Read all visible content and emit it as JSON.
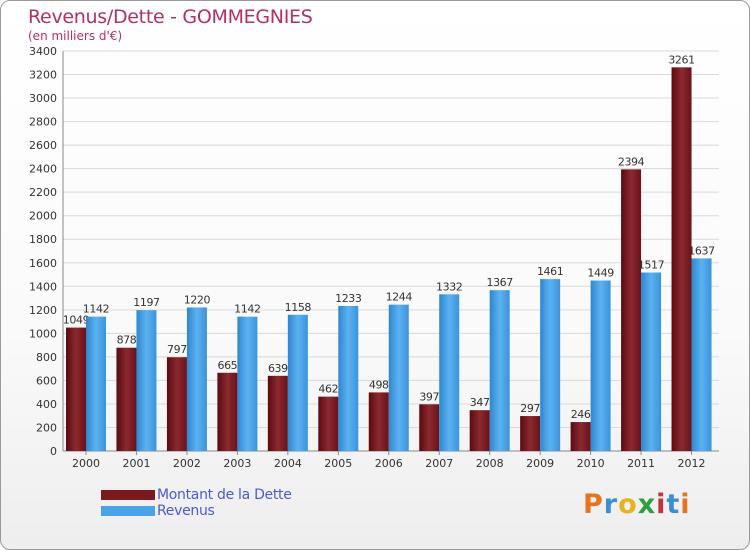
{
  "header": {
    "title": "Revenus/Dette - GOMMEGNIES",
    "subtitle": "(en milliers d'€)"
  },
  "colors": {
    "title": "#b0306a",
    "debt": "#7a1a1f",
    "revenue": "#4aa3e6",
    "grid": "#d9d9d9",
    "text": "#333333"
  },
  "chart_data": {
    "type": "bar",
    "title": "Revenus/Dette - GOMMEGNIES",
    "ylabel": "(en milliers d'€)",
    "xlabel": "",
    "categories": [
      "2000",
      "2001",
      "2002",
      "2003",
      "2004",
      "2005",
      "2006",
      "2007",
      "2008",
      "2009",
      "2010",
      "2011",
      "2012"
    ],
    "series": [
      {
        "name": "Montant de la Dette",
        "values": [
          1049,
          878,
          797,
          665,
          639,
          462,
          498,
          397,
          347,
          297,
          246,
          2394,
          3261
        ]
      },
      {
        "name": "Revenus",
        "values": [
          1142,
          1197,
          1220,
          1142,
          1158,
          1233,
          1244,
          1332,
          1367,
          1461,
          1449,
          1517,
          1637
        ]
      }
    ],
    "ylim": [
      0,
      3400
    ],
    "ytick_step": 200,
    "grid": true,
    "legend": "bottom-left"
  },
  "legend": {
    "items": [
      {
        "label": "Montant de la Dette"
      },
      {
        "label": "Revenus"
      }
    ]
  },
  "logo": {
    "letters": [
      "P",
      "r",
      "o",
      "x",
      "i",
      "t",
      "i"
    ],
    "colors": [
      "#e8731c",
      "#3a8fd4",
      "#e8b41c",
      "#2f9e3e",
      "#c8303a",
      "#3a8fd4",
      "#e8731c"
    ]
  }
}
